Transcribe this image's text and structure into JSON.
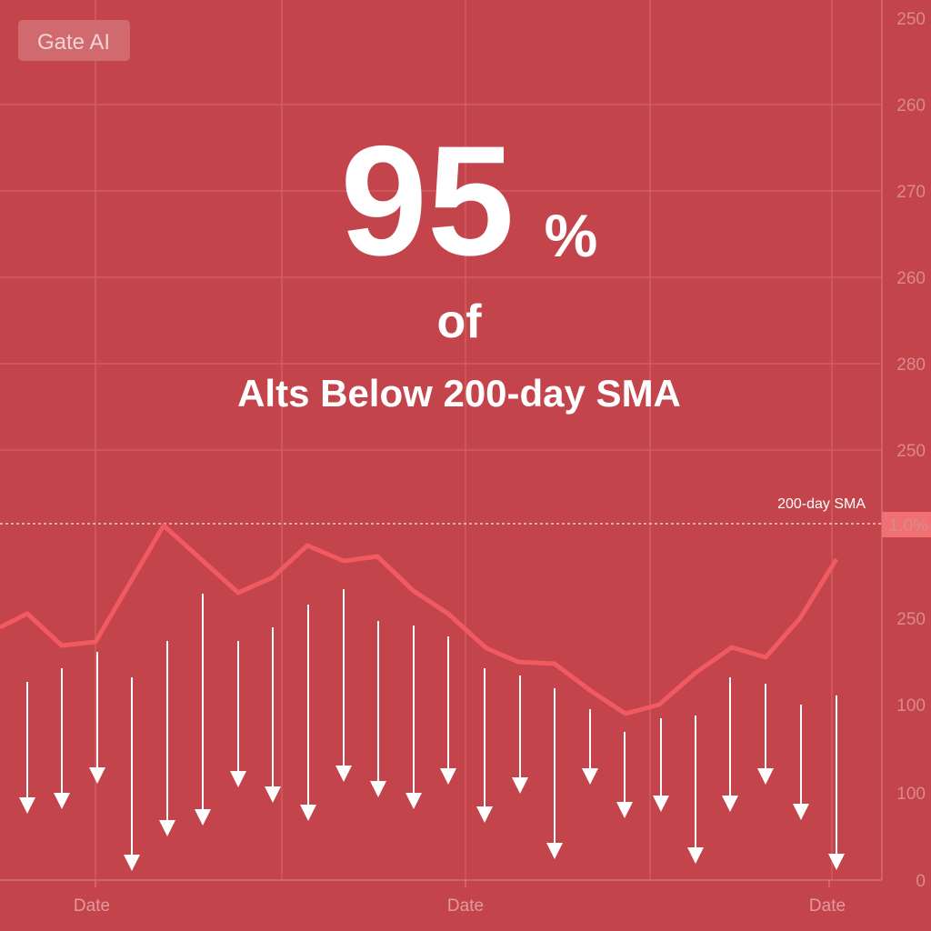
{
  "brand": "Gate AI",
  "headline": {
    "number": "95",
    "unit": "%",
    "connector": "of",
    "subtitle": "Alts Below 200-day SMA"
  },
  "axis": {
    "right_labels": [
      "250",
      "260",
      "270",
      "260",
      "280",
      "250",
      "1.0%",
      "250",
      "100",
      "100",
      "0"
    ],
    "reference_label": "200-day SMA",
    "bottom_labels": [
      "Date",
      "Date",
      "Date"
    ]
  }
}
